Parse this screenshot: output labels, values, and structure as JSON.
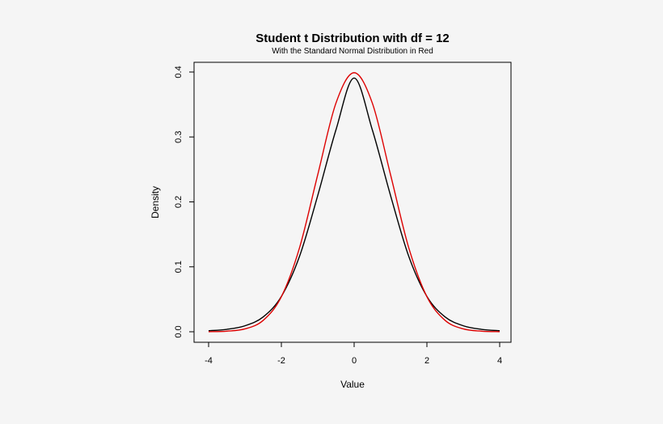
{
  "chart_data": {
    "type": "line",
    "title": "Student t Distribution with df = 12",
    "subtitle": "With the Standard Normal Distribution in Red",
    "xlabel": "Value",
    "ylabel": "Density",
    "xlim": [
      -4,
      4
    ],
    "ylim": [
      0,
      0.4
    ],
    "x_ticks": [
      -4,
      -2,
      0,
      2,
      4
    ],
    "x_tick_labels": [
      "-4",
      "-2",
      "0",
      "2",
      "4"
    ],
    "y_ticks": [
      0.0,
      0.1,
      0.2,
      0.3,
      0.4
    ],
    "y_tick_labels": [
      "0.0",
      "0.1",
      "0.2",
      "0.3",
      "0.4"
    ],
    "grid": false,
    "series": [
      {
        "color": "#000000",
        "x": [
          -4,
          -3.5,
          -3,
          -2.5,
          -2,
          -1.5,
          -1,
          -0.5,
          0,
          0.5,
          1,
          1.5,
          2,
          2.5,
          3,
          3.5,
          4
        ],
        "values": [
          0.0016,
          0.0037,
          0.0092,
          0.0228,
          0.0544,
          0.1163,
          0.2099,
          0.3109,
          0.3907,
          0.3109,
          0.2099,
          0.1163,
          0.0544,
          0.0228,
          0.0092,
          0.0037,
          0.0016
        ]
      },
      {
        "color": "#dd0000",
        "x": [
          -4,
          -3.5,
          -3,
          -2.5,
          -2,
          -1.5,
          -1,
          -0.5,
          0,
          0.5,
          1,
          1.5,
          2,
          2.5,
          3,
          3.5,
          4
        ],
        "values": [
          0.0001,
          0.0009,
          0.0044,
          0.0175,
          0.054,
          0.1295,
          0.242,
          0.3521,
          0.3989,
          0.3521,
          0.242,
          0.1295,
          0.054,
          0.0175,
          0.0044,
          0.0009,
          0.0001
        ]
      }
    ]
  }
}
